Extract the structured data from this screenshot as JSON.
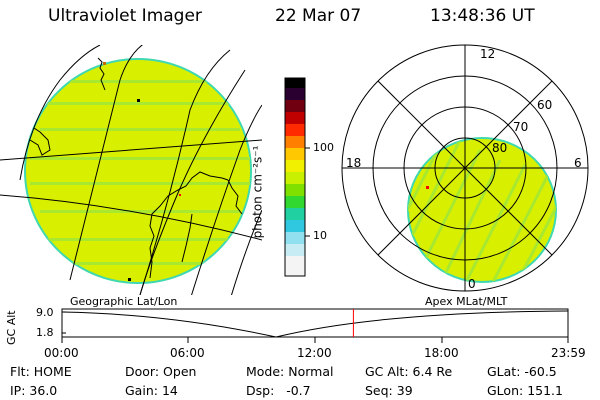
{
  "header": {
    "instrument": "Ultraviolet Imager",
    "date": "22 Mar 07",
    "time": "13:48:36 UT"
  },
  "colorbar": {
    "unit_label": "photon cm⁻²s⁻¹",
    "ticks": [
      "100",
      "10"
    ]
  },
  "left_panel": {
    "caption": "Geographic Lat/Lon"
  },
  "right_panel": {
    "caption": "Apex MLat/MLT",
    "mlt_labels": [
      "12",
      "18",
      "6",
      "0"
    ],
    "mlat_labels": [
      "60",
      "70",
      "80"
    ]
  },
  "timeline": {
    "y_label": "GC Alt",
    "y_ticks": [
      "9.0",
      "1.8"
    ],
    "x_ticks": [
      "00:00",
      "06:00",
      "12:00",
      "18:00",
      "23:59"
    ],
    "current_time_hours": 13.81
  },
  "status": {
    "row1": [
      {
        "label": "Flt:",
        "value": "HOME"
      },
      {
        "label": "Door:",
        "value": "Open"
      },
      {
        "label": "Mode:",
        "value": "Normal"
      },
      {
        "label": "GC Alt:",
        "value": "6.4 Re"
      },
      {
        "label": "GLat:",
        "value": "-60.5"
      }
    ],
    "row2": [
      {
        "label": "IP:",
        "value": "36.0"
      },
      {
        "label": "Gain:",
        "value": "14"
      },
      {
        "label": "Dsp:",
        "value": "-0.7"
      },
      {
        "label": "Seq:",
        "value": "39"
      },
      {
        "label": "GLon:",
        "value": "151.1"
      }
    ]
  },
  "colors": {
    "aurora_fill": "#d8f000",
    "aurora_edge": "#40d8b0",
    "streak": "#a8e830",
    "marker": "#ff0000"
  }
}
